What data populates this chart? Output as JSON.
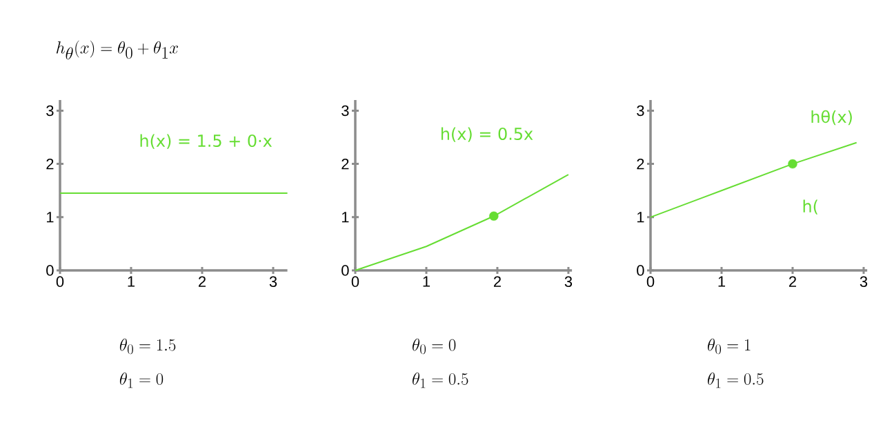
{
  "chart_data": [
    {
      "type": "line",
      "title": "h_\\theta(x) = \\theta_0 + \\theta_1 x",
      "xlim": [
        0,
        3.2
      ],
      "ylim": [
        0,
        3.2
      ],
      "xticks": [
        0,
        1,
        2,
        3
      ],
      "yticks": [
        0,
        1,
        2,
        3
      ],
      "series": [
        {
          "color": "#66dd33",
          "x": [
            0,
            3.2
          ],
          "values": [
            1.45,
            1.45
          ]
        }
      ],
      "annotations": [
        "h(x) = 1.5 + 0·x",
        "\\theta_0 = 1.5",
        "\\theta_1 = 0"
      ]
    },
    {
      "type": "line",
      "xlim": [
        0,
        3.05
      ],
      "ylim": [
        0,
        3.2
      ],
      "xticks": [
        0,
        1,
        2,
        3
      ],
      "yticks": [
        0,
        1,
        2,
        3
      ],
      "series": [
        {
          "color": "#66dd33",
          "x": [
            0,
            1,
            1.95,
            3
          ],
          "values": [
            0,
            0.45,
            1.02,
            1.8
          ]
        },
        {
          "type": "scatter",
          "color": "#66dd33",
          "x": [
            1.95
          ],
          "values": [
            1.02
          ]
        }
      ],
      "annotations": [
        "h(x) = 0.5x",
        "\\theta_0 = 0",
        "\\theta_1 = 0.5"
      ]
    },
    {
      "type": "line",
      "xlim": [
        0,
        3.05
      ],
      "ylim": [
        0,
        3.2
      ],
      "xticks": [
        0,
        1,
        2,
        3
      ],
      "yticks": [
        0,
        1,
        2,
        3
      ],
      "series": [
        {
          "color": "#66dd33",
          "x": [
            0,
            1,
            2,
            2.9
          ],
          "values": [
            1,
            1.5,
            2,
            2.4
          ]
        },
        {
          "type": "scatter",
          "color": "#66dd33",
          "x": [
            2
          ],
          "values": [
            2
          ]
        }
      ],
      "annotations": [
        "hθ(x)",
        "h(",
        "\\theta_0 = 1",
        "\\theta_1 = 0.5"
      ]
    }
  ]
}
